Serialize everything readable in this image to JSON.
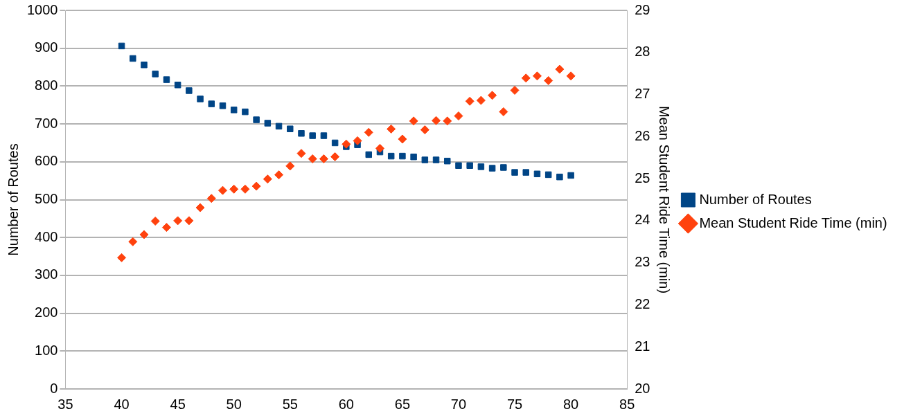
{
  "chart_data": {
    "type": "scatter",
    "ylabel": "Number of Routes",
    "y2label": "Mean Student Ride Time (min)",
    "x": [
      40,
      41,
      42,
      43,
      44,
      45,
      46,
      47,
      48,
      49,
      50,
      51,
      52,
      53,
      54,
      55,
      56,
      57,
      58,
      59,
      60,
      61,
      62,
      63,
      64,
      65,
      66,
      67,
      68,
      69,
      70,
      71,
      72,
      73,
      74,
      75,
      76,
      77,
      78,
      79,
      80
    ],
    "series": [
      {
        "name": "Number of Routes",
        "color": "#004586",
        "marker": "square",
        "values": [
          906,
          873,
          856,
          832,
          817,
          803,
          788,
          766,
          753,
          748,
          737,
          732,
          711,
          702,
          694,
          687,
          675,
          669,
          669,
          650,
          640,
          645,
          619,
          626,
          615,
          615,
          613,
          605,
          605,
          602,
          590,
          590,
          587,
          583,
          585,
          572,
          572,
          568,
          566,
          560,
          564
        ]
      },
      {
        "name": "Mean Student Ride Time (min)",
        "color": "#ff420e",
        "marker": "diamond",
        "axis": "y2",
        "values": [
          23.12,
          23.5,
          23.67,
          23.99,
          23.84,
          24.0,
          24.0,
          24.31,
          24.53,
          24.72,
          24.75,
          24.75,
          24.82,
          24.99,
          25.09,
          25.3,
          25.6,
          25.47,
          25.47,
          25.52,
          25.82,
          25.9,
          26.1,
          25.72,
          26.18,
          25.94,
          26.37,
          26.16,
          26.38,
          26.37,
          26.49,
          26.84,
          26.86,
          26.98,
          26.59,
          27.1,
          27.39,
          27.44,
          27.33,
          27.6,
          27.44
        ]
      }
    ],
    "xlim": [
      35,
      85
    ],
    "xticks": [
      35,
      40,
      45,
      50,
      55,
      60,
      65,
      70,
      75,
      80,
      85
    ],
    "ylim": [
      0,
      1000
    ],
    "yticks": [
      0,
      100,
      200,
      300,
      400,
      500,
      600,
      700,
      800,
      900,
      1000
    ],
    "y2lim": [
      20,
      29
    ],
    "y2ticks": [
      20,
      21,
      22,
      23,
      24,
      25,
      26,
      27,
      28,
      29
    ],
    "grid": "y",
    "legend": "right"
  }
}
